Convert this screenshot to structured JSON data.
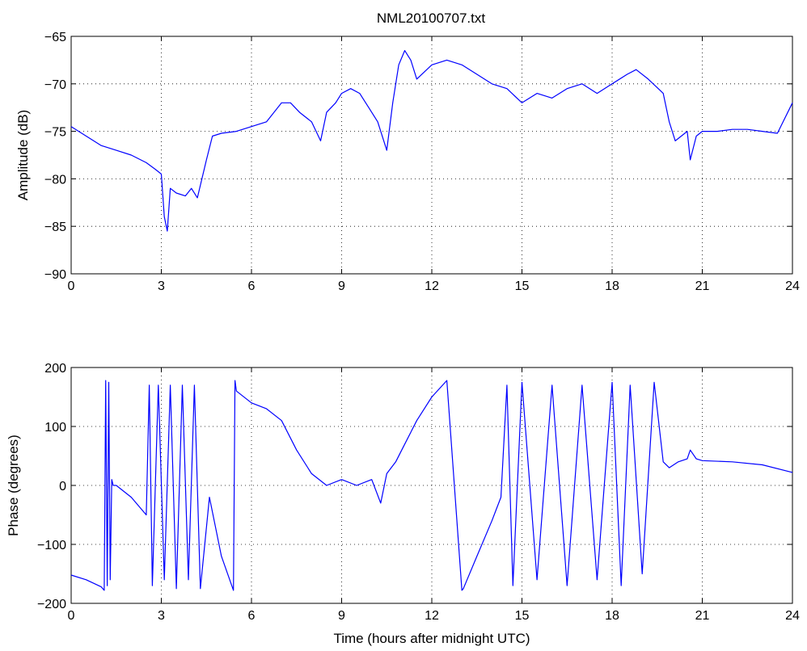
{
  "chart_data": [
    {
      "id": "amplitude",
      "type": "line",
      "title": "NML20100707.txt",
      "xlabel": "",
      "ylabel": "Amplitude (dB)",
      "xlim": [
        0,
        24
      ],
      "ylim": [
        -90,
        -65
      ],
      "xticks": [
        0,
        3,
        6,
        9,
        12,
        15,
        18,
        21,
        24
      ],
      "yticks": [
        -90,
        -85,
        -80,
        -75,
        -70,
        -65
      ],
      "grid": true,
      "line_color": "#0000ff",
      "series": [
        {
          "x": [
            0,
            0.5,
            1,
            1.5,
            2,
            2.5,
            2.8,
            3.0,
            3.1,
            3.2,
            3.3,
            3.5,
            3.8,
            4.0,
            4.2,
            4.5,
            4.7,
            5.0,
            5.5,
            6.0,
            6.5,
            7.0,
            7.3,
            7.6,
            8.0,
            8.3,
            8.5,
            8.8,
            9.0,
            9.3,
            9.6,
            9.9,
            10.2,
            10.5,
            10.7,
            10.9,
            11.1,
            11.3,
            11.5,
            12.0,
            12.5,
            13.0,
            13.5,
            14.0,
            14.5,
            15.0,
            15.5,
            16.0,
            16.5,
            17.0,
            17.5,
            18.0,
            18.5,
            18.8,
            19.2,
            19.7,
            19.9,
            20.1,
            20.3,
            20.5,
            20.6,
            20.8,
            21.0,
            21.5,
            22.0,
            22.5,
            23.0,
            23.5,
            24.0
          ],
          "y": [
            -74.5,
            -75.5,
            -76.5,
            -77.0,
            -77.5,
            -78.3,
            -79.0,
            -79.5,
            -84.0,
            -85.5,
            -81.0,
            -81.5,
            -81.8,
            -81.0,
            -82.0,
            -78.0,
            -75.5,
            -75.2,
            -75.0,
            -74.5,
            -74.0,
            -72.0,
            -72.0,
            -73.0,
            -74.0,
            -76.0,
            -73.0,
            -72.0,
            -71.0,
            -70.5,
            -71.0,
            -72.5,
            -74.0,
            -77.0,
            -72.0,
            -68.0,
            -66.5,
            -67.5,
            -69.5,
            -68.0,
            -67.5,
            -68.0,
            -69.0,
            -70.0,
            -70.5,
            -72.0,
            -71.0,
            -71.5,
            -70.5,
            -70.0,
            -71.0,
            -70.0,
            -69.0,
            -68.5,
            -69.5,
            -71.0,
            -74.0,
            -76.0,
            -75.5,
            -75.0,
            -78.0,
            -75.5,
            -75.0,
            -75.0,
            -74.8,
            -74.8,
            -75.0,
            -75.2,
            -72.0
          ]
        }
      ]
    },
    {
      "id": "phase",
      "type": "line",
      "title": "",
      "xlabel": "Time (hours after midnight UTC)",
      "ylabel": "Phase (degrees)",
      "xlim": [
        0,
        24
      ],
      "ylim": [
        -200,
        200
      ],
      "xticks": [
        0,
        3,
        6,
        9,
        12,
        15,
        18,
        21,
        24
      ],
      "yticks": [
        -200,
        -100,
        0,
        100,
        200
      ],
      "grid": true,
      "line_color": "#0000ff",
      "series": [
        {
          "x": [
            0,
            0.5,
            1.0,
            1.1,
            1.15,
            1.2,
            1.25,
            1.3,
            1.35,
            1.4,
            1.5,
            2.0,
            2.5,
            2.6,
            2.7,
            2.9,
            3.1,
            3.3,
            3.5,
            3.7,
            3.9,
            4.1,
            4.3,
            4.6,
            5.0,
            5.4,
            5.45,
            5.5,
            6.0,
            6.5,
            7.0,
            7.5,
            8.0,
            8.5,
            9.0,
            9.5,
            10.0,
            10.3,
            10.5,
            10.8,
            11.0,
            11.5,
            12.0,
            12.5,
            13.0,
            13.05,
            13.5,
            14.0,
            14.3,
            14.5,
            14.7,
            15.0,
            15.5,
            16.0,
            16.5,
            17.0,
            17.5,
            18.0,
            18.3,
            18.6,
            19.0,
            19.4,
            19.7,
            19.9,
            20.2,
            20.5,
            20.6,
            20.8,
            21.0,
            22.0,
            23.0,
            24.0
          ],
          "y": [
            -152,
            -160,
            -172,
            -178,
            178,
            -170,
            175,
            -160,
            10,
            0,
            0,
            -20,
            -50,
            170,
            -170,
            170,
            -160,
            170,
            -175,
            170,
            -160,
            170,
            -175,
            -20,
            -120,
            -178,
            178,
            160,
            140,
            130,
            110,
            60,
            20,
            0,
            10,
            0,
            10,
            -30,
            20,
            40,
            60,
            110,
            150,
            178,
            -178,
            -175,
            -120,
            -60,
            -20,
            170,
            -170,
            175,
            -160,
            170,
            -170,
            170,
            -160,
            175,
            -170,
            170,
            -150,
            175,
            40,
            30,
            40,
            45,
            60,
            45,
            42,
            40,
            35,
            22
          ]
        }
      ]
    }
  ]
}
